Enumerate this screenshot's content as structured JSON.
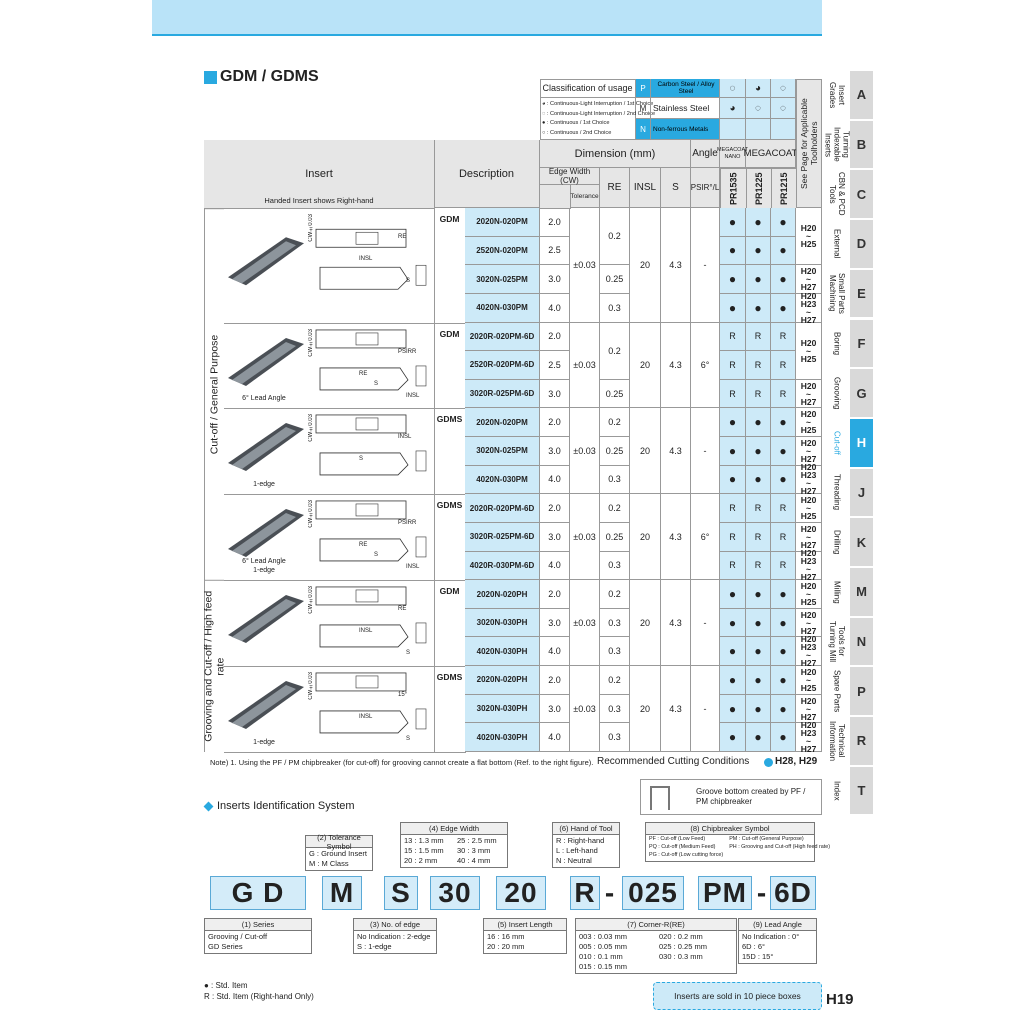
{
  "header": {
    "title": "GDM / GDMS"
  },
  "classification": {
    "title": "Classification of usage",
    "legend": [
      "◕ : Continuous-Light Interruption / 1st Choice",
      "◌ : Continuous-Light Interruption / 2nd Choice",
      "● : Continuous / 1st Choice",
      "○ : Continuous / 2nd Choice"
    ],
    "materials": [
      {
        "code": "P",
        "name": "Carbon Steel / Alloy Steel",
        "highlight": true,
        "marks": [
          "◌",
          "◕",
          "◌"
        ]
      },
      {
        "code": "M",
        "name": "Stainless Steel",
        "highlight": false,
        "marks": [
          "◕",
          "◌",
          "◌"
        ]
      },
      {
        "code": "N",
        "name": "Non-ferrous Metals",
        "highlight": true
      }
    ]
  },
  "table": {
    "headers": {
      "insert": "Insert",
      "insert_note": "Handed Insert shows Right-hand",
      "description": "Description",
      "dimension": "Dimension (mm)",
      "angle": "Angle",
      "edge_width": "Edge Width (CW)",
      "tolerance": "Tolerance",
      "re": "RE",
      "insl": "INSL",
      "s": "S",
      "psir": "PSIR°/L",
      "nano": "MEGACOAT NANO",
      "megacoat": "MEGACOAT",
      "grades": [
        "PR1535",
        "PR1225",
        "PR1215"
      ],
      "pages": "See Page for Applicable Toolholders"
    },
    "groups": [
      "Cut-off / General Purpose",
      "Grooving and Cut-off / High feed rate"
    ],
    "sections": [
      {
        "series": "GDM",
        "codes": [
          "2020N-020PM",
          "2520N-020PM",
          "3020N-025PM",
          "4020N-030PM"
        ],
        "cw": [
          "2.0",
          "2.5",
          "3.0",
          "4.0"
        ],
        "re": [
          "0.2",
          null,
          "0.25",
          "0.3"
        ],
        "tolerance": "±0.03",
        "insl": "20",
        "s": "4.3",
        "psir": "-",
        "marks": [
          [
            "●",
            "●",
            "●"
          ],
          [
            "●",
            "●",
            "●"
          ],
          [
            "●",
            "●",
            "●"
          ],
          [
            "●",
            "●",
            "●"
          ]
        ],
        "pages": [
          "H20 ~ H25",
          null,
          "H20 ~ H27",
          "H20 H23 ~ H27"
        ],
        "captions": [],
        "diagram": [
          "CW±0.03",
          "RE",
          "INSL",
          "S"
        ]
      },
      {
        "series": "GDM",
        "codes": [
          "2020R-020PM-6D",
          "2520R-020PM-6D",
          "3020R-025PM-6D"
        ],
        "cw": [
          "2.0",
          "2.5",
          "3.0"
        ],
        "re": [
          "0.2",
          null,
          "0.25"
        ],
        "tolerance": "±0.03",
        "insl": "20",
        "s": "4.3",
        "psir": "6°",
        "marks": [
          [
            "R",
            "R",
            "R"
          ],
          [
            "R",
            "R",
            "R"
          ],
          [
            "R",
            "R",
            "R"
          ]
        ],
        "pages": [
          "H20 ~ H25",
          null,
          "H20 ~ H27"
        ],
        "captions": [
          "6° Lead Angle"
        ],
        "diagram": [
          "CW±0.03",
          "PSIRR",
          "RE",
          "INSL",
          "S"
        ]
      },
      {
        "series": "GDMS",
        "codes": [
          "2020N-020PM",
          "3020N-025PM",
          "4020N-030PM"
        ],
        "cw": [
          "2.0",
          "3.0",
          "4.0"
        ],
        "re": [
          "0.2",
          "0.25",
          "0.3"
        ],
        "tolerance": "±0.03",
        "insl": "20",
        "s": "4.3",
        "psir": "-",
        "marks": [
          [
            "●",
            "●",
            "●"
          ],
          [
            "●",
            "●",
            "●"
          ],
          [
            "●",
            "●",
            "●"
          ]
        ],
        "pages": [
          "H20 ~ H25",
          "H20 ~ H27",
          "H20 H23 ~ H27"
        ],
        "captions": [
          "1-edge"
        ],
        "diagram": [
          "CW±0.03",
          "INSL",
          "S"
        ]
      },
      {
        "series": "GDMS",
        "codes": [
          "2020R-020PM-6D",
          "3020R-025PM-6D",
          "4020R-030PM-6D"
        ],
        "cw": [
          "2.0",
          "3.0",
          "4.0"
        ],
        "re": [
          "0.2",
          "0.25",
          "0.3"
        ],
        "tolerance": "±0.03",
        "insl": "20",
        "s": "4.3",
        "psir": "6°",
        "marks": [
          [
            "R",
            "R",
            "R"
          ],
          [
            "R",
            "R",
            "R"
          ],
          [
            "R",
            "R",
            "R"
          ]
        ],
        "pages": [
          "H20 ~ H25",
          "H20 ~ H27",
          "H20 H23 ~ H27"
        ],
        "captions": [
          "6° Lead Angle",
          "1-edge"
        ],
        "diagram": [
          "CW±0.03",
          "PSIRR",
          "RE",
          "INSL",
          "S"
        ]
      },
      {
        "series": "GDM",
        "codes": [
          "2020N-020PH",
          "3020N-030PH",
          "4020N-030PH"
        ],
        "cw": [
          "2.0",
          "3.0",
          "4.0"
        ],
        "re": [
          "0.2",
          "0.3",
          "0.3"
        ],
        "tolerance": "±0.03",
        "insl": "20",
        "s": "4.3",
        "psir": "-",
        "marks": [
          [
            "●",
            "●",
            "●"
          ],
          [
            "●",
            "●",
            "●"
          ],
          [
            "●",
            "●",
            "●"
          ]
        ],
        "pages": [
          "H20 ~ H25",
          "H20 ~ H27",
          "H20 H23 ~ H27"
        ],
        "captions": [],
        "diagram": [
          "CW±0.03",
          "RE",
          "INSL",
          "S"
        ]
      },
      {
        "series": "GDMS",
        "codes": [
          "2020N-020PH",
          "3020N-030PH",
          "4020N-030PH"
        ],
        "cw": [
          "2.0",
          "3.0",
          "4.0"
        ],
        "re": [
          "0.2",
          "0.3",
          "0.3"
        ],
        "tolerance": "±0.03",
        "insl": "20",
        "s": "4.3",
        "psir": "-",
        "marks": [
          [
            "●",
            "●",
            "●"
          ],
          [
            "●",
            "●",
            "●"
          ],
          [
            "●",
            "●",
            "●"
          ]
        ],
        "pages": [
          "H20 ~ H25",
          "H20 ~ H27",
          "H20 H23 ~ H27"
        ],
        "captions": [
          "1-edge"
        ],
        "diagram": [
          "CW±0.03",
          "15°",
          "INSL",
          "S"
        ]
      }
    ]
  },
  "note": "Note) 1. Using the PF / PM chipbreaker (for cut-off) for grooving cannot create a flat bottom (Ref. to the right figure).",
  "recommended": {
    "label": "Recommended Cutting Conditions",
    "pages": "H28, H29"
  },
  "groove_note": "Groove bottom created by PF / PM chipbreaker",
  "identification": {
    "title": "Inserts Identification System",
    "code": [
      "G D",
      "M",
      "S",
      "30",
      "20",
      "R",
      "-",
      "025",
      "PM",
      "-",
      "6D"
    ],
    "upper": [
      {
        "title": "(2) Tolerance Symbol",
        "items": [
          "G : Ground Insert",
          "M : M Class"
        ]
      },
      {
        "title": "(4) Edge Width",
        "items": [
          "13 : 1.3 mm",
          "15 : 1.5 mm",
          "20 : 2 mm",
          "25 : 2.5 mm",
          "30 : 3 mm",
          "40 : 4 mm"
        ]
      },
      {
        "title": "(6) Hand of Tool",
        "items": [
          "R : Right-hand",
          "L : Left-hand",
          "N : Neutral"
        ]
      },
      {
        "title": "(8) Chipbreaker Symbol",
        "items": [
          "PF : Cut-off (Low Feed)",
          "PQ : Cut-off (Medium Feed)",
          "PG : Cut-off (Low cutting force)",
          "PM : Cut-off (General Purpose)",
          "PH : Grooving and Cut-off (High feed rate)"
        ]
      }
    ],
    "lower": [
      {
        "title": "(1) Series",
        "items": [
          "Grooving / Cut-off",
          "GD Series"
        ]
      },
      {
        "title": "(3) No. of edge",
        "items": [
          "No Indication : 2-edge",
          "S : 1-edge"
        ]
      },
      {
        "title": "(5) Insert Length",
        "items": [
          "16 : 16 mm",
          "20 : 20 mm"
        ]
      },
      {
        "title": "(7) Corner-R(RE)",
        "items": [
          "003 : 0.03 mm",
          "005 : 0.05 mm",
          "010 : 0.1 mm",
          "015 : 0.15 mm",
          "020 : 0.2 mm",
          "025 : 0.25 mm",
          "030 : 0.3 mm"
        ]
      },
      {
        "title": "(9) Lead Angle",
        "items": [
          "No Indication : 0°",
          "6D : 6°",
          "15D : 15°"
        ]
      }
    ]
  },
  "legend": [
    "● : Std. Item",
    "R : Std. Item (Right-hand Only)"
  ],
  "box_note": "Inserts are sold in 10 piece boxes",
  "page_number": "H19",
  "tabs": [
    {
      "letter": "A",
      "label": "Insert Grades"
    },
    {
      "letter": "B",
      "label": "Turning Indexable Inserts"
    },
    {
      "letter": "C",
      "label": "CBN & PCD Tools"
    },
    {
      "letter": "D",
      "label": "External"
    },
    {
      "letter": "E",
      "label": "Small Parts Machining"
    },
    {
      "letter": "F",
      "label": "Boring"
    },
    {
      "letter": "G",
      "label": "Grooving"
    },
    {
      "letter": "H",
      "label": "Cut-off",
      "active": true
    },
    {
      "letter": "J",
      "label": "Threading"
    },
    {
      "letter": "K",
      "label": "Drilling"
    },
    {
      "letter": "M",
      "label": "Milling"
    },
    {
      "letter": "N",
      "label": "Tools for Turning Mill"
    },
    {
      "letter": "P",
      "label": "Spare Parts"
    },
    {
      "letter": "R",
      "label": "Technical Information"
    },
    {
      "letter": "T",
      "label": "Index"
    }
  ]
}
